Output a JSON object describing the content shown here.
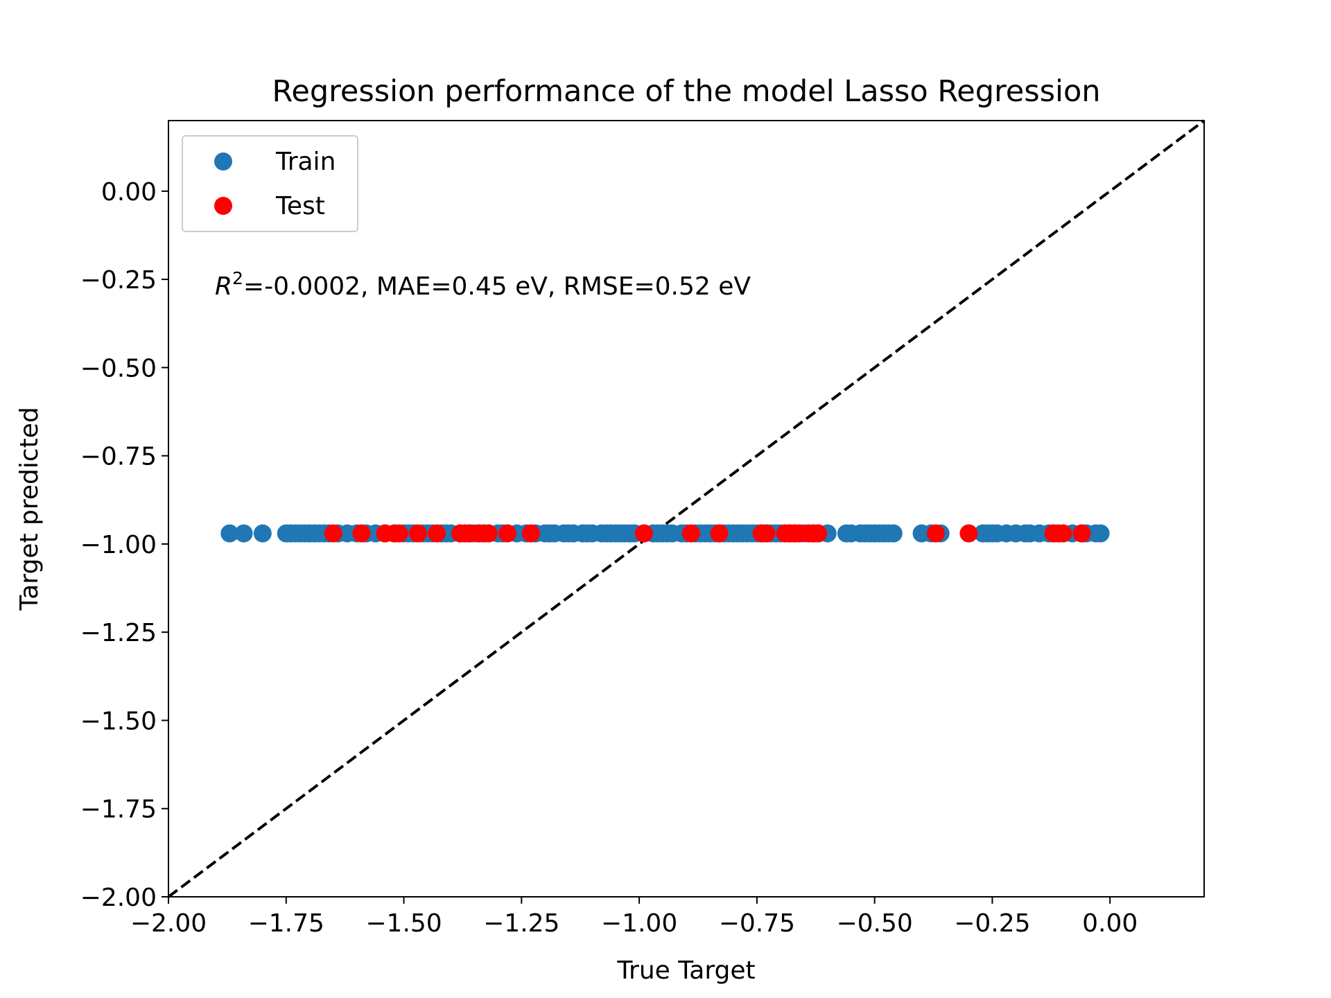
{
  "chart_data": {
    "type": "scatter",
    "title": "Regression performance of the model Lasso Regression",
    "xlabel": "True Target",
    "ylabel": "Target predicted",
    "xlim": [
      -2.0,
      0.2
    ],
    "ylim": [
      -2.0,
      0.2
    ],
    "x_ticks": [
      -2.0,
      -1.75,
      -1.5,
      -1.25,
      -1.0,
      -0.75,
      -0.5,
      -0.25,
      0.0
    ],
    "x_tick_labels": [
      "−2.00",
      "−1.75",
      "−1.50",
      "−1.25",
      "−1.00",
      "−0.75",
      "−0.50",
      "−0.25",
      "0.00"
    ],
    "y_ticks": [
      0.0,
      -0.25,
      -0.5,
      -0.75,
      -1.0,
      -1.25,
      -1.5,
      -1.75,
      -2.0
    ],
    "y_tick_labels": [
      "0.00",
      "−0.25",
      "−0.50",
      "−0.75",
      "−1.00",
      "−1.25",
      "−1.50",
      "−1.75",
      "−2.00"
    ],
    "grid": false,
    "legend_position": "top-left",
    "annotation": {
      "r2_symbol": "R",
      "r2_superscript": "2",
      "text": "=-0.0002, MAE=0.45 eV, RMSE=0.52 eV"
    },
    "reference_line": {
      "style": "dashed",
      "color": "#000000",
      "from": [
        -2.0,
        -2.0
      ],
      "to": [
        0.2,
        0.2
      ]
    },
    "series": [
      {
        "name": "Train",
        "color": "#1f77b4",
        "y": -0.97,
        "x": [
          -1.87,
          -1.84,
          -1.8,
          -1.75,
          -1.74,
          -1.73,
          -1.72,
          -1.71,
          -1.7,
          -1.69,
          -1.68,
          -1.67,
          -1.66,
          -1.64,
          -1.62,
          -1.6,
          -1.58,
          -1.56,
          -1.54,
          -1.52,
          -1.5,
          -1.49,
          -1.48,
          -1.46,
          -1.45,
          -1.44,
          -1.42,
          -1.41,
          -1.4,
          -1.38,
          -1.37,
          -1.36,
          -1.35,
          -1.34,
          -1.33,
          -1.32,
          -1.3,
          -1.29,
          -1.28,
          -1.26,
          -1.24,
          -1.22,
          -1.2,
          -1.19,
          -1.18,
          -1.16,
          -1.15,
          -1.14,
          -1.12,
          -1.11,
          -1.1,
          -1.08,
          -1.07,
          -1.06,
          -1.05,
          -1.04,
          -1.03,
          -1.02,
          -1.01,
          -0.99,
          -0.97,
          -0.96,
          -0.95,
          -0.94,
          -0.93,
          -0.91,
          -0.9,
          -0.88,
          -0.87,
          -0.86,
          -0.85,
          -0.84,
          -0.83,
          -0.82,
          -0.81,
          -0.8,
          -0.79,
          -0.78,
          -0.77,
          -0.76,
          -0.75,
          -0.74,
          -0.73,
          -0.72,
          -0.71,
          -0.7,
          -0.69,
          -0.68,
          -0.67,
          -0.66,
          -0.65,
          -0.64,
          -0.63,
          -0.62,
          -0.6,
          -0.56,
          -0.55,
          -0.53,
          -0.52,
          -0.51,
          -0.5,
          -0.49,
          -0.48,
          -0.47,
          -0.46,
          -0.4,
          -0.38,
          -0.36,
          -0.3,
          -0.27,
          -0.26,
          -0.25,
          -0.24,
          -0.22,
          -0.2,
          -0.18,
          -0.17,
          -0.15,
          -0.13,
          -0.12,
          -0.1,
          -0.08,
          -0.06,
          -0.05,
          -0.03,
          -0.02
        ]
      },
      {
        "name": "Test",
        "color": "#ff0000",
        "y": -0.97,
        "x": [
          -1.65,
          -1.59,
          -1.54,
          -1.52,
          -1.51,
          -1.47,
          -1.43,
          -1.38,
          -1.37,
          -1.36,
          -1.34,
          -1.33,
          -1.32,
          -1.28,
          -1.23,
          -0.99,
          -0.89,
          -0.83,
          -0.74,
          -0.73,
          -0.69,
          -0.68,
          -0.67,
          -0.66,
          -0.64,
          -0.63,
          -0.62,
          -0.37,
          -0.3,
          -0.12,
          -0.11,
          -0.1,
          -0.06
        ]
      }
    ]
  }
}
